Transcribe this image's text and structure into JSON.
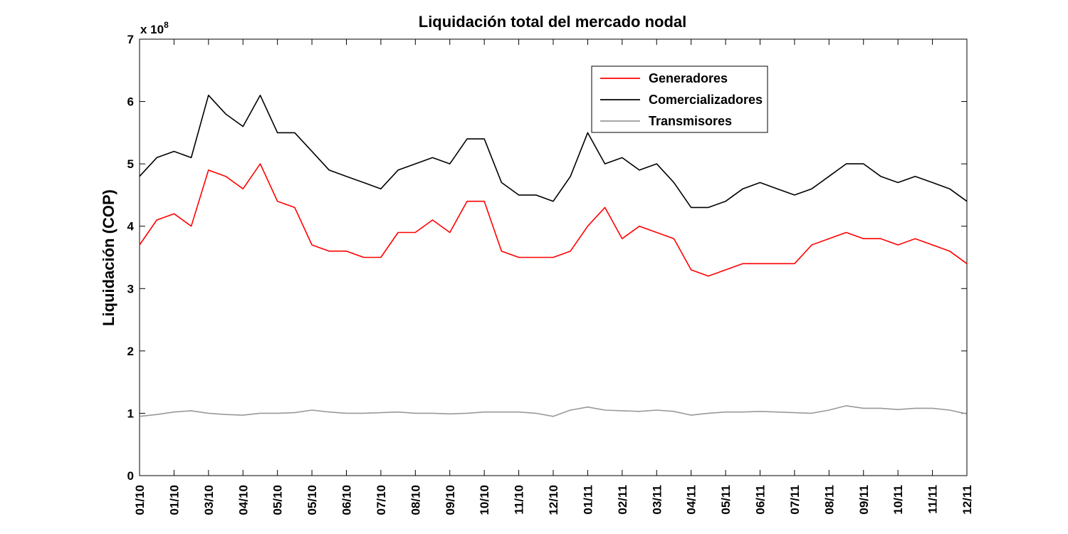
{
  "chart_data": {
    "type": "line",
    "title": "Liquidación total del mercado nodal",
    "ylabel": "Liquidación (COP)",
    "xlabel": "",
    "y_exponent_label": "x 10",
    "y_exponent_power": "8",
    "ylim": [
      0,
      7
    ],
    "yticks": [
      "0",
      "1",
      "2",
      "3",
      "4",
      "5",
      "6",
      "7"
    ],
    "x_tick_labels": [
      "01/10",
      "01/10",
      "03/10",
      "04/10",
      "05/10",
      "05/10",
      "06/10",
      "07/10",
      "08/10",
      "09/10",
      "10/10",
      "11/10",
      "12/10",
      "01/11",
      "02/11",
      "03/11",
      "04/11",
      "05/11",
      "06/11",
      "07/11",
      "08/11",
      "09/11",
      "10/11",
      "11/11",
      "12/11"
    ],
    "x_index_range": [
      0,
      24
    ],
    "legend_position": "top-right",
    "grid": false,
    "series": [
      {
        "name": "Generadores",
        "color": "#ff0000",
        "x": [
          0,
          0.5,
          1,
          1.5,
          2,
          2.5,
          3,
          3.5,
          4,
          4.5,
          5,
          5.5,
          6,
          6.5,
          7,
          7.5,
          8,
          8.5,
          9,
          9.5,
          10,
          10.5,
          11,
          11.5,
          12,
          12.5,
          13,
          13.5,
          14,
          14.5,
          15,
          15.5,
          16,
          16.5,
          17,
          17.5,
          18,
          18.5,
          19,
          19.5,
          20,
          20.5,
          21,
          21.5,
          22,
          22.5,
          23,
          23.5,
          24
        ],
        "values": [
          3.7,
          4.1,
          4.2,
          4.0,
          4.9,
          4.8,
          4.6,
          5.0,
          4.4,
          4.3,
          3.7,
          3.6,
          3.6,
          3.5,
          3.5,
          3.9,
          3.9,
          4.1,
          3.9,
          4.4,
          4.4,
          3.6,
          3.5,
          3.5,
          3.5,
          3.6,
          4.0,
          4.3,
          3.8,
          4.0,
          3.9,
          3.8,
          3.3,
          3.2,
          3.3,
          3.4,
          3.4,
          3.4,
          3.4,
          3.7,
          3.8,
          3.9,
          3.8,
          3.8,
          3.7,
          3.8,
          3.7,
          3.6,
          3.4
        ]
      },
      {
        "name": "Comercializadores",
        "color": "#000000",
        "x": [
          0,
          0.5,
          1,
          1.5,
          2,
          2.5,
          3,
          3.5,
          4,
          4.5,
          5,
          5.5,
          6,
          6.5,
          7,
          7.5,
          8,
          8.5,
          9,
          9.5,
          10,
          10.5,
          11,
          11.5,
          12,
          12.5,
          13,
          13.5,
          14,
          14.5,
          15,
          15.5,
          16,
          16.5,
          17,
          17.5,
          18,
          18.5,
          19,
          19.5,
          20,
          20.5,
          21,
          21.5,
          22,
          22.5,
          23,
          23.5,
          24
        ],
        "values": [
          4.8,
          5.1,
          5.2,
          5.1,
          6.1,
          5.8,
          5.6,
          6.1,
          5.5,
          5.5,
          5.2,
          4.9,
          4.8,
          4.7,
          4.6,
          4.9,
          5.0,
          5.1,
          5.0,
          5.4,
          5.4,
          4.7,
          4.5,
          4.5,
          4.4,
          4.8,
          5.5,
          5.0,
          5.1,
          4.9,
          5.0,
          4.7,
          4.3,
          4.3,
          4.4,
          4.6,
          4.7,
          4.6,
          4.5,
          4.6,
          4.8,
          5.0,
          5.0,
          4.8,
          4.7,
          4.8,
          4.7,
          4.6,
          4.4
        ]
      },
      {
        "name": "Transmisores",
        "color": "#999999",
        "x": [
          0,
          0.5,
          1,
          1.5,
          2,
          2.5,
          3,
          3.5,
          4,
          4.5,
          5,
          5.5,
          6,
          6.5,
          7,
          7.5,
          8,
          8.5,
          9,
          9.5,
          10,
          10.5,
          11,
          11.5,
          12,
          12.5,
          13,
          13.5,
          14,
          14.5,
          15,
          15.5,
          16,
          16.5,
          17,
          17.5,
          18,
          18.5,
          19,
          19.5,
          20,
          20.5,
          21,
          21.5,
          22,
          22.5,
          23,
          23.5,
          24
        ],
        "values": [
          0.95,
          0.98,
          1.02,
          1.04,
          1.0,
          0.98,
          0.97,
          1.0,
          1.0,
          1.01,
          1.05,
          1.02,
          1.0,
          1.0,
          1.01,
          1.02,
          1.0,
          1.0,
          0.99,
          1.0,
          1.02,
          1.02,
          1.02,
          1.0,
          0.95,
          1.05,
          1.1,
          1.05,
          1.04,
          1.03,
          1.05,
          1.03,
          0.97,
          1.0,
          1.02,
          1.02,
          1.03,
          1.02,
          1.01,
          1.0,
          1.05,
          1.12,
          1.08,
          1.08,
          1.06,
          1.08,
          1.08,
          1.05,
          0.99
        ]
      }
    ]
  }
}
